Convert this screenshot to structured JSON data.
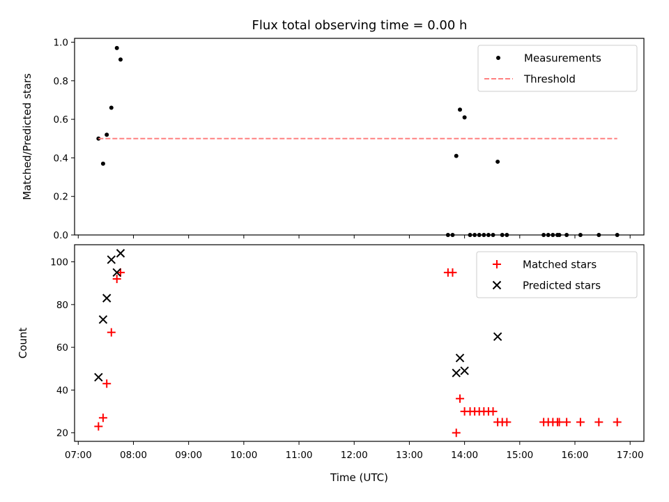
{
  "chart_data": [
    {
      "type": "scatter",
      "title": "Flux total observing time = 0.00 h",
      "ylabel": "Matched/Predicted stars",
      "xlabel": "",
      "ylim": [
        0,
        1.02
      ],
      "xlim": [
        "06:56",
        "17:15"
      ],
      "xticks": [
        "07:00",
        "08:00",
        "09:00",
        "10:00",
        "11:00",
        "12:00",
        "13:00",
        "14:00",
        "15:00",
        "16:00",
        "17:00"
      ],
      "yticks": [
        "0.0",
        "0.2",
        "0.4",
        "0.6",
        "0.8",
        "1.0"
      ],
      "legend": "top-right",
      "series": [
        {
          "name": "Measurements",
          "marker": "dot",
          "color": "#000000",
          "points": [
            [
              "07:22",
              0.5
            ],
            [
              "07:27",
              0.37
            ],
            [
              "07:31",
              0.52
            ],
            [
              "07:36",
              0.66
            ],
            [
              "07:42",
              0.97
            ],
            [
              "07:46",
              0.91
            ],
            [
              "13:42",
              0.0
            ],
            [
              "13:47",
              0.0
            ],
            [
              "13:51",
              0.41
            ],
            [
              "13:55",
              0.65
            ],
            [
              "14:00",
              0.61
            ],
            [
              "14:06",
              0.0
            ],
            [
              "14:11",
              0.0
            ],
            [
              "14:16",
              0.0
            ],
            [
              "14:21",
              0.0
            ],
            [
              "14:26",
              0.0
            ],
            [
              "14:31",
              0.0
            ],
            [
              "14:36",
              0.38
            ],
            [
              "14:41",
              0.0
            ],
            [
              "14:46",
              0.0
            ],
            [
              "15:26",
              0.0
            ],
            [
              "15:31",
              0.0
            ],
            [
              "15:36",
              0.0
            ],
            [
              "15:41",
              0.0
            ],
            [
              "15:43",
              0.0
            ],
            [
              "15:51",
              0.0
            ],
            [
              "16:06",
              0.0
            ],
            [
              "16:26",
              0.0
            ],
            [
              "16:46",
              0.0
            ]
          ]
        },
        {
          "name": "Threshold",
          "marker": "dashed-line",
          "color": "#ff8080",
          "points": [
            [
              "07:22",
              0.5
            ],
            [
              "16:46",
              0.5
            ]
          ]
        }
      ]
    },
    {
      "type": "scatter",
      "title": "",
      "ylabel": "Count",
      "xlabel": "Time (UTC)",
      "ylim": [
        16,
        108
      ],
      "xlim": [
        "06:56",
        "17:15"
      ],
      "xticks": [
        "07:00",
        "08:00",
        "09:00",
        "10:00",
        "11:00",
        "12:00",
        "13:00",
        "14:00",
        "15:00",
        "16:00",
        "17:00"
      ],
      "yticks": [
        "20",
        "40",
        "60",
        "80",
        "100"
      ],
      "legend": "top-right",
      "series": [
        {
          "name": "Matched stars",
          "marker": "plus",
          "color": "#ff0000",
          "points": [
            [
              "07:22",
              23
            ],
            [
              "07:27",
              27
            ],
            [
              "07:31",
              43
            ],
            [
              "07:36",
              67
            ],
            [
              "07:42",
              92
            ],
            [
              "07:46",
              95
            ],
            [
              "13:42",
              95
            ],
            [
              "13:47",
              95
            ],
            [
              "13:51",
              20
            ],
            [
              "13:55",
              36
            ],
            [
              "14:00",
              30
            ],
            [
              "14:06",
              30
            ],
            [
              "14:11",
              30
            ],
            [
              "14:16",
              30
            ],
            [
              "14:21",
              30
            ],
            [
              "14:26",
              30
            ],
            [
              "14:31",
              30
            ],
            [
              "14:36",
              25
            ],
            [
              "14:41",
              25
            ],
            [
              "14:46",
              25
            ],
            [
              "15:26",
              25
            ],
            [
              "15:31",
              25
            ],
            [
              "15:36",
              25
            ],
            [
              "15:41",
              25
            ],
            [
              "15:43",
              25
            ],
            [
              "15:51",
              25
            ],
            [
              "16:06",
              25
            ],
            [
              "16:26",
              25
            ],
            [
              "16:46",
              25
            ]
          ]
        },
        {
          "name": "Predicted stars",
          "marker": "x",
          "color": "#000000",
          "points": [
            [
              "07:22",
              46
            ],
            [
              "07:27",
              73
            ],
            [
              "07:31",
              83
            ],
            [
              "07:36",
              101
            ],
            [
              "07:42",
              95
            ],
            [
              "07:46",
              104
            ],
            [
              "13:51",
              48
            ],
            [
              "13:55",
              55
            ],
            [
              "14:00",
              49
            ],
            [
              "14:36",
              65
            ]
          ]
        }
      ]
    }
  ]
}
